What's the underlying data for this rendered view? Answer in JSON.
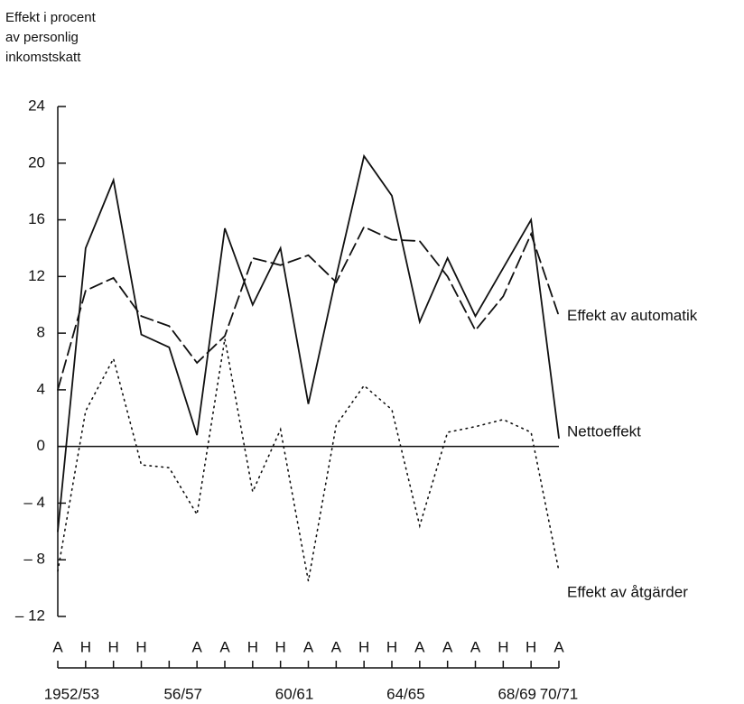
{
  "chart_data": {
    "type": "line",
    "ylabel_lines": [
      "Effekt i procent",
      "av personlig",
      "inkomstskatt"
    ],
    "categories": [
      "A",
      "H",
      "H",
      "H",
      null,
      "A",
      "A",
      "H",
      "H",
      "A",
      "A",
      "H",
      "H",
      "A",
      "A",
      "A",
      "H",
      "H",
      "A"
    ],
    "year_labels": [
      {
        "value": 0.5,
        "label": "1952/53"
      },
      {
        "value": 4.5,
        "label": "56/57"
      },
      {
        "value": 8.5,
        "label": "60/61"
      },
      {
        "value": 12.5,
        "label": "64/65"
      },
      {
        "value": 16.5,
        "label": "68/69"
      },
      {
        "value": 18,
        "label": "70/71"
      }
    ],
    "ylim": [
      -12,
      24
    ],
    "yticks": [
      {
        "value": -12,
        "label": "– 12"
      },
      {
        "value": -8,
        "label": "– 8"
      },
      {
        "value": -4,
        "label": "– 4"
      },
      0,
      4,
      8,
      12,
      16,
      20,
      24
    ],
    "reference_line": 0,
    "series": [
      {
        "name": "Effekt av automatik",
        "color": "#111",
        "dash": "dashed",
        "values": [
          4,
          11,
          11.9,
          9.2,
          8.5,
          5.9,
          7.8,
          13.3,
          12.8,
          13.5,
          11.6,
          15.5,
          14.6,
          14.5,
          12,
          8.2,
          10.6,
          15,
          9.2
        ]
      },
      {
        "name": "Nettoeffekt",
        "color": "#111",
        "dash": "solid",
        "values": [
          -6,
          14,
          18.8,
          7.9,
          7,
          0.8,
          15.4,
          10,
          14,
          3,
          12,
          20.5,
          17.7,
          8.8,
          13.3,
          9.2,
          12.6,
          16,
          0.6
        ]
      },
      {
        "name": "Effekt av åtgärder",
        "color": "#111",
        "dash": "dotted",
        "values": [
          -8.8,
          2.5,
          6.2,
          -1.3,
          -1.5,
          -4.8,
          7.6,
          -3.2,
          1.2,
          -9.5,
          1.5,
          4.3,
          2.6,
          -5.6,
          1,
          1.4,
          1.9,
          1,
          -8.8
        ]
      }
    ]
  }
}
